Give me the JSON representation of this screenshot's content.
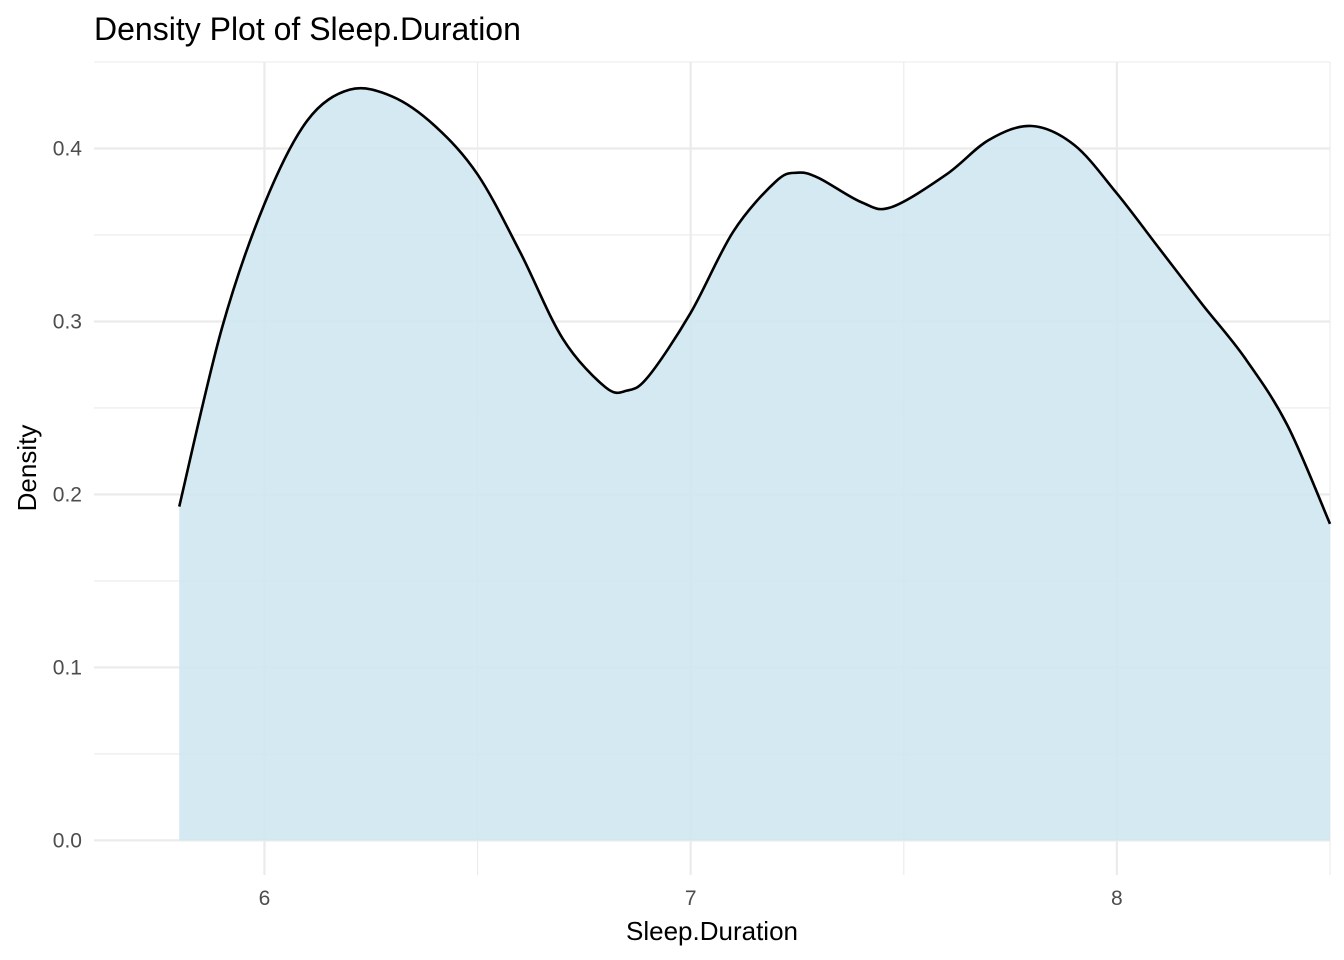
{
  "chart_data": {
    "type": "area",
    "title": "Density Plot of Sleep.Duration",
    "xlabel": "Sleep.Duration",
    "ylabel": "Density",
    "xlim": [
      5.6,
      8.5
    ],
    "ylim": [
      -0.02,
      0.45
    ],
    "x_major_ticks": [
      6,
      7,
      8
    ],
    "x_tick_labels": [
      "6",
      "7",
      "8"
    ],
    "x_minor_ticks": [
      6.5,
      7.5,
      8.5
    ],
    "y_major_ticks": [
      0.0,
      0.1,
      0.2,
      0.3,
      0.4
    ],
    "y_tick_labels": [
      "0.0",
      "0.1",
      "0.2",
      "0.3",
      "0.4"
    ],
    "y_minor_ticks": [
      0.05,
      0.15,
      0.25,
      0.35,
      0.45
    ],
    "grid": true,
    "fill_color": "#cfe7ef",
    "line_color": "#000000",
    "series": [
      {
        "x": [
          5.8,
          5.9,
          6.0,
          6.1,
          6.2,
          6.3,
          6.4,
          6.5,
          6.6,
          6.7,
          6.8,
          6.85,
          6.9,
          7.0,
          7.1,
          7.2,
          7.25,
          7.3,
          7.4,
          7.47,
          7.6,
          7.7,
          7.8,
          7.9,
          8.0,
          8.1,
          8.2,
          8.3,
          8.4,
          8.5
        ],
        "y": [
          0.193,
          0.296,
          0.368,
          0.416,
          0.434,
          0.43,
          0.413,
          0.385,
          0.34,
          0.29,
          0.262,
          0.26,
          0.268,
          0.305,
          0.352,
          0.381,
          0.386,
          0.383,
          0.369,
          0.366,
          0.385,
          0.405,
          0.413,
          0.402,
          0.374,
          0.342,
          0.31,
          0.279,
          0.24,
          0.183
        ]
      }
    ]
  }
}
